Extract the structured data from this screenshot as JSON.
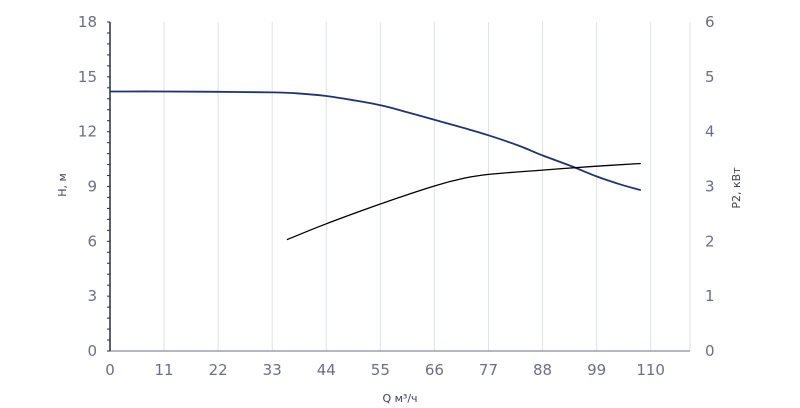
{
  "chart_data": {
    "type": "line",
    "xlabel": "Q м³/ч",
    "ylabel_left": "Н, м",
    "ylabel_right": "P2, кВт",
    "x_ticks": [
      0,
      11,
      22,
      33,
      44,
      55,
      66,
      77,
      88,
      99,
      110
    ],
    "y_left_ticks": [
      0,
      3,
      6,
      9,
      12,
      15,
      18
    ],
    "y_right_ticks": [
      0,
      1,
      2,
      3,
      4,
      5,
      6
    ],
    "xlim": [
      0,
      118
    ],
    "ylim_left": [
      0,
      18
    ],
    "ylim_right": [
      0,
      6
    ],
    "grid": "vertical",
    "series": [
      {
        "axis": "left",
        "color": "#1f3470",
        "x": [
          0,
          11,
          22,
          33,
          38,
          44,
          50,
          55,
          60,
          66,
          72,
          77,
          83,
          88,
          94,
          99,
          104,
          108
        ],
        "y": [
          14.2,
          14.2,
          14.18,
          14.15,
          14.1,
          13.95,
          13.7,
          13.45,
          13.1,
          12.65,
          12.2,
          11.8,
          11.25,
          10.7,
          10.1,
          9.55,
          9.1,
          8.8
        ]
      },
      {
        "axis": "right",
        "color": "#000000",
        "x": [
          36,
          44,
          55,
          66,
          72,
          77,
          88,
          99,
          108
        ],
        "y": [
          2.03,
          2.32,
          2.68,
          3.01,
          3.15,
          3.22,
          3.3,
          3.37,
          3.42
        ]
      }
    ]
  }
}
